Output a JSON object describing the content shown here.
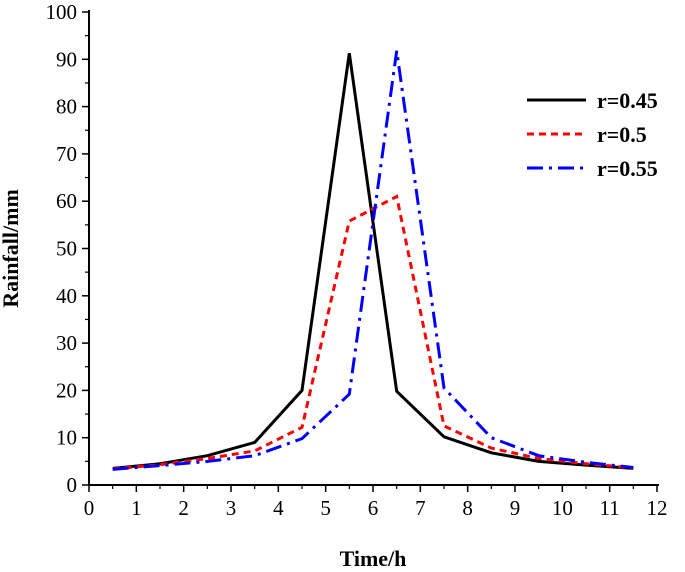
{
  "chart_data": {
    "type": "line",
    "title": "",
    "xlabel": "Time/h",
    "ylabel": "Rainfall/mm",
    "xlim": [
      0,
      12
    ],
    "ylim": [
      0,
      100
    ],
    "xticks": [
      "0",
      "1",
      "2",
      "3",
      "4",
      "5",
      "6",
      "7",
      "8",
      "9",
      "10",
      "11",
      "12"
    ],
    "yticks": [
      "0",
      "10",
      "20",
      "30",
      "40",
      "50",
      "60",
      "70",
      "80",
      "90",
      "100"
    ],
    "grid": false,
    "legend_position": "top-right",
    "x": [
      0.5,
      1.5,
      2.5,
      3.5,
      4.5,
      5.5,
      6.5,
      7.5,
      8.5,
      9.5,
      10.5,
      11.5
    ],
    "series": [
      {
        "name": "r=0.45",
        "color": "#000000",
        "style": "solid",
        "values": [
          3.5,
          4.5,
          6.2,
          9.0,
          20.0,
          91.3,
          19.8,
          10.2,
          6.8,
          5.0,
          4.2,
          3.5
        ]
      },
      {
        "name": "r=0.5",
        "color": "#ff0000",
        "style": "dashed",
        "values": [
          3.4,
          4.3,
          5.6,
          7.2,
          12.2,
          55.8,
          61.0,
          12.5,
          7.8,
          5.6,
          4.5,
          3.6
        ]
      },
      {
        "name": "r=0.55",
        "color": "#0000ff",
        "style": "dashdot",
        "values": [
          3.3,
          4.1,
          5.0,
          6.2,
          9.8,
          19.2,
          91.8,
          20.5,
          10.0,
          6.2,
          4.8,
          3.7
        ]
      }
    ]
  }
}
